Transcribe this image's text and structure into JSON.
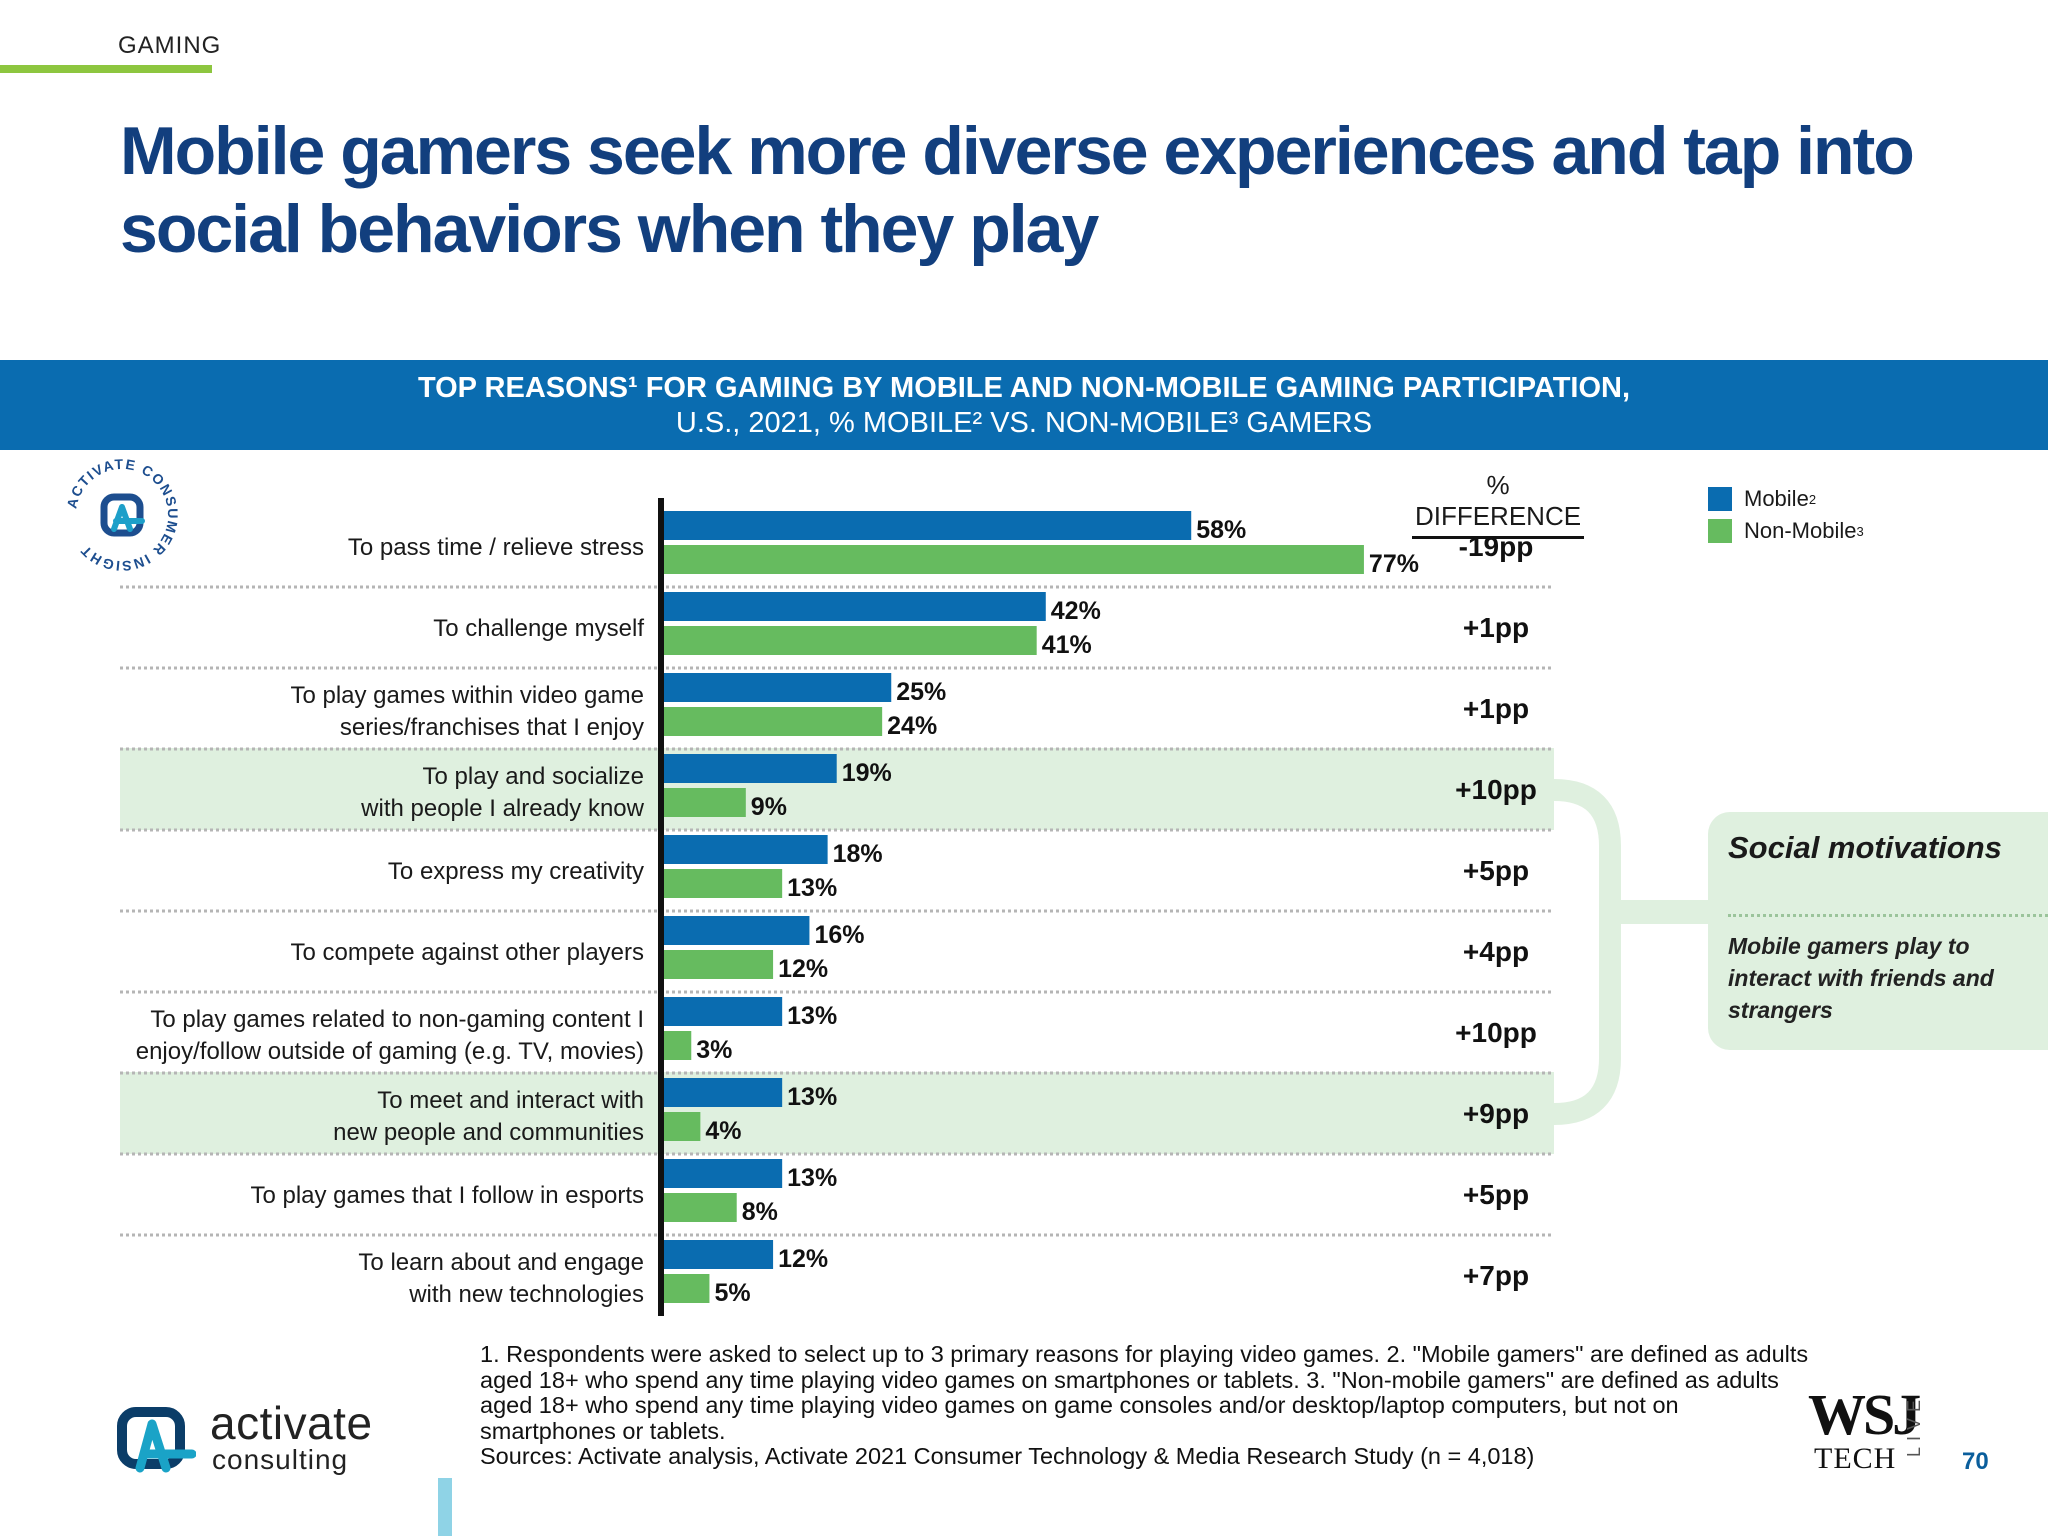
{
  "section": "GAMING",
  "title": "Mobile gamers seek more diverse experiences and tap into social behaviors when they play",
  "banner": {
    "line1": "TOP REASONS¹ FOR GAMING BY MOBILE AND NON-MOBILE GAMING PARTICIPATION,",
    "line2": "U.S., 2021, % MOBILE² VS. NON-MOBILE³ GAMERS"
  },
  "seal_text": "ACTIVATE CONSUMER INSIGHT",
  "diff_header": "% DIFFERENCE",
  "legend": [
    {
      "label": "Mobile",
      "sup": "2",
      "color": "#0a6cb0"
    },
    {
      "label": "Non-Mobile",
      "sup": "3",
      "color": "#66bb5f"
    }
  ],
  "callout": {
    "title": "Social motivations",
    "text": "Mobile gamers play to interact with friends and strangers"
  },
  "chart_data": {
    "type": "bar",
    "orientation": "horizontal",
    "categories": [
      "To pass time / relieve stress",
      "To challenge myself",
      "To play games within video game series/franchises that I enjoy",
      "To play and socialize with people I already know",
      "To express my creativity",
      "To compete against other players",
      "To play games related to non-gaming content I enjoy/follow outside of gaming (e.g. TV, movies)",
      "To meet and interact with new people and communities",
      "To play games that I follow in esports",
      "To learn about and engage with new technologies"
    ],
    "category_lines": [
      [
        "To pass time / relieve stress"
      ],
      [
        "To challenge myself"
      ],
      [
        "To play games within video game",
        "series/franchises that I enjoy"
      ],
      [
        "To play and socialize",
        "with people I already know"
      ],
      [
        "To express my creativity"
      ],
      [
        "To compete against other players"
      ],
      [
        "To play games related to non-gaming content I",
        "enjoy/follow outside of gaming (e.g. TV, movies)"
      ],
      [
        "To meet and interact with",
        "new people and communities"
      ],
      [
        "To play games that I follow in esports"
      ],
      [
        "To learn about and engage",
        "with new technologies"
      ]
    ],
    "series": [
      {
        "name": "Mobile",
        "values": [
          58,
          42,
          25,
          19,
          18,
          16,
          13,
          13,
          13,
          12
        ],
        "color": "#0a6cb0"
      },
      {
        "name": "Non-Mobile",
        "values": [
          77,
          41,
          24,
          9,
          13,
          12,
          3,
          4,
          8,
          5
        ],
        "color": "#66bb5f"
      }
    ],
    "differences": [
      "-19pp",
      "+1pp",
      "+1pp",
      "+10pp",
      "+5pp",
      "+4pp",
      "+10pp",
      "+9pp",
      "+5pp",
      "+7pp"
    ],
    "highlighted_rows": [
      3,
      7
    ],
    "highlight_color": "#dff0df",
    "value_suffix": "%",
    "xlim": [
      0,
      80
    ]
  },
  "footnote_lines": [
    "1. Respondents were asked to select up to 3 primary reasons for playing video games.  2. \"Mobile gamers\" are defined as adults",
    "aged 18+ who spend any time playing video games on smartphones or tablets.  3. \"Non-mobile gamers\" are defined as adults",
    "aged 18+ who spend any time playing video games on game consoles and/or desktop/laptop computers, but not on",
    "smartphones or tablets.",
    "Sources: Activate analysis, Activate 2021 Consumer Technology & Media Research Study (n = 4,018)"
  ],
  "logo": {
    "word": "activate",
    "sub": "consulting"
  },
  "wsj": {
    "main": "WSJ",
    "sub": "TECH",
    "live": "LIVE"
  },
  "page_number": "70"
}
